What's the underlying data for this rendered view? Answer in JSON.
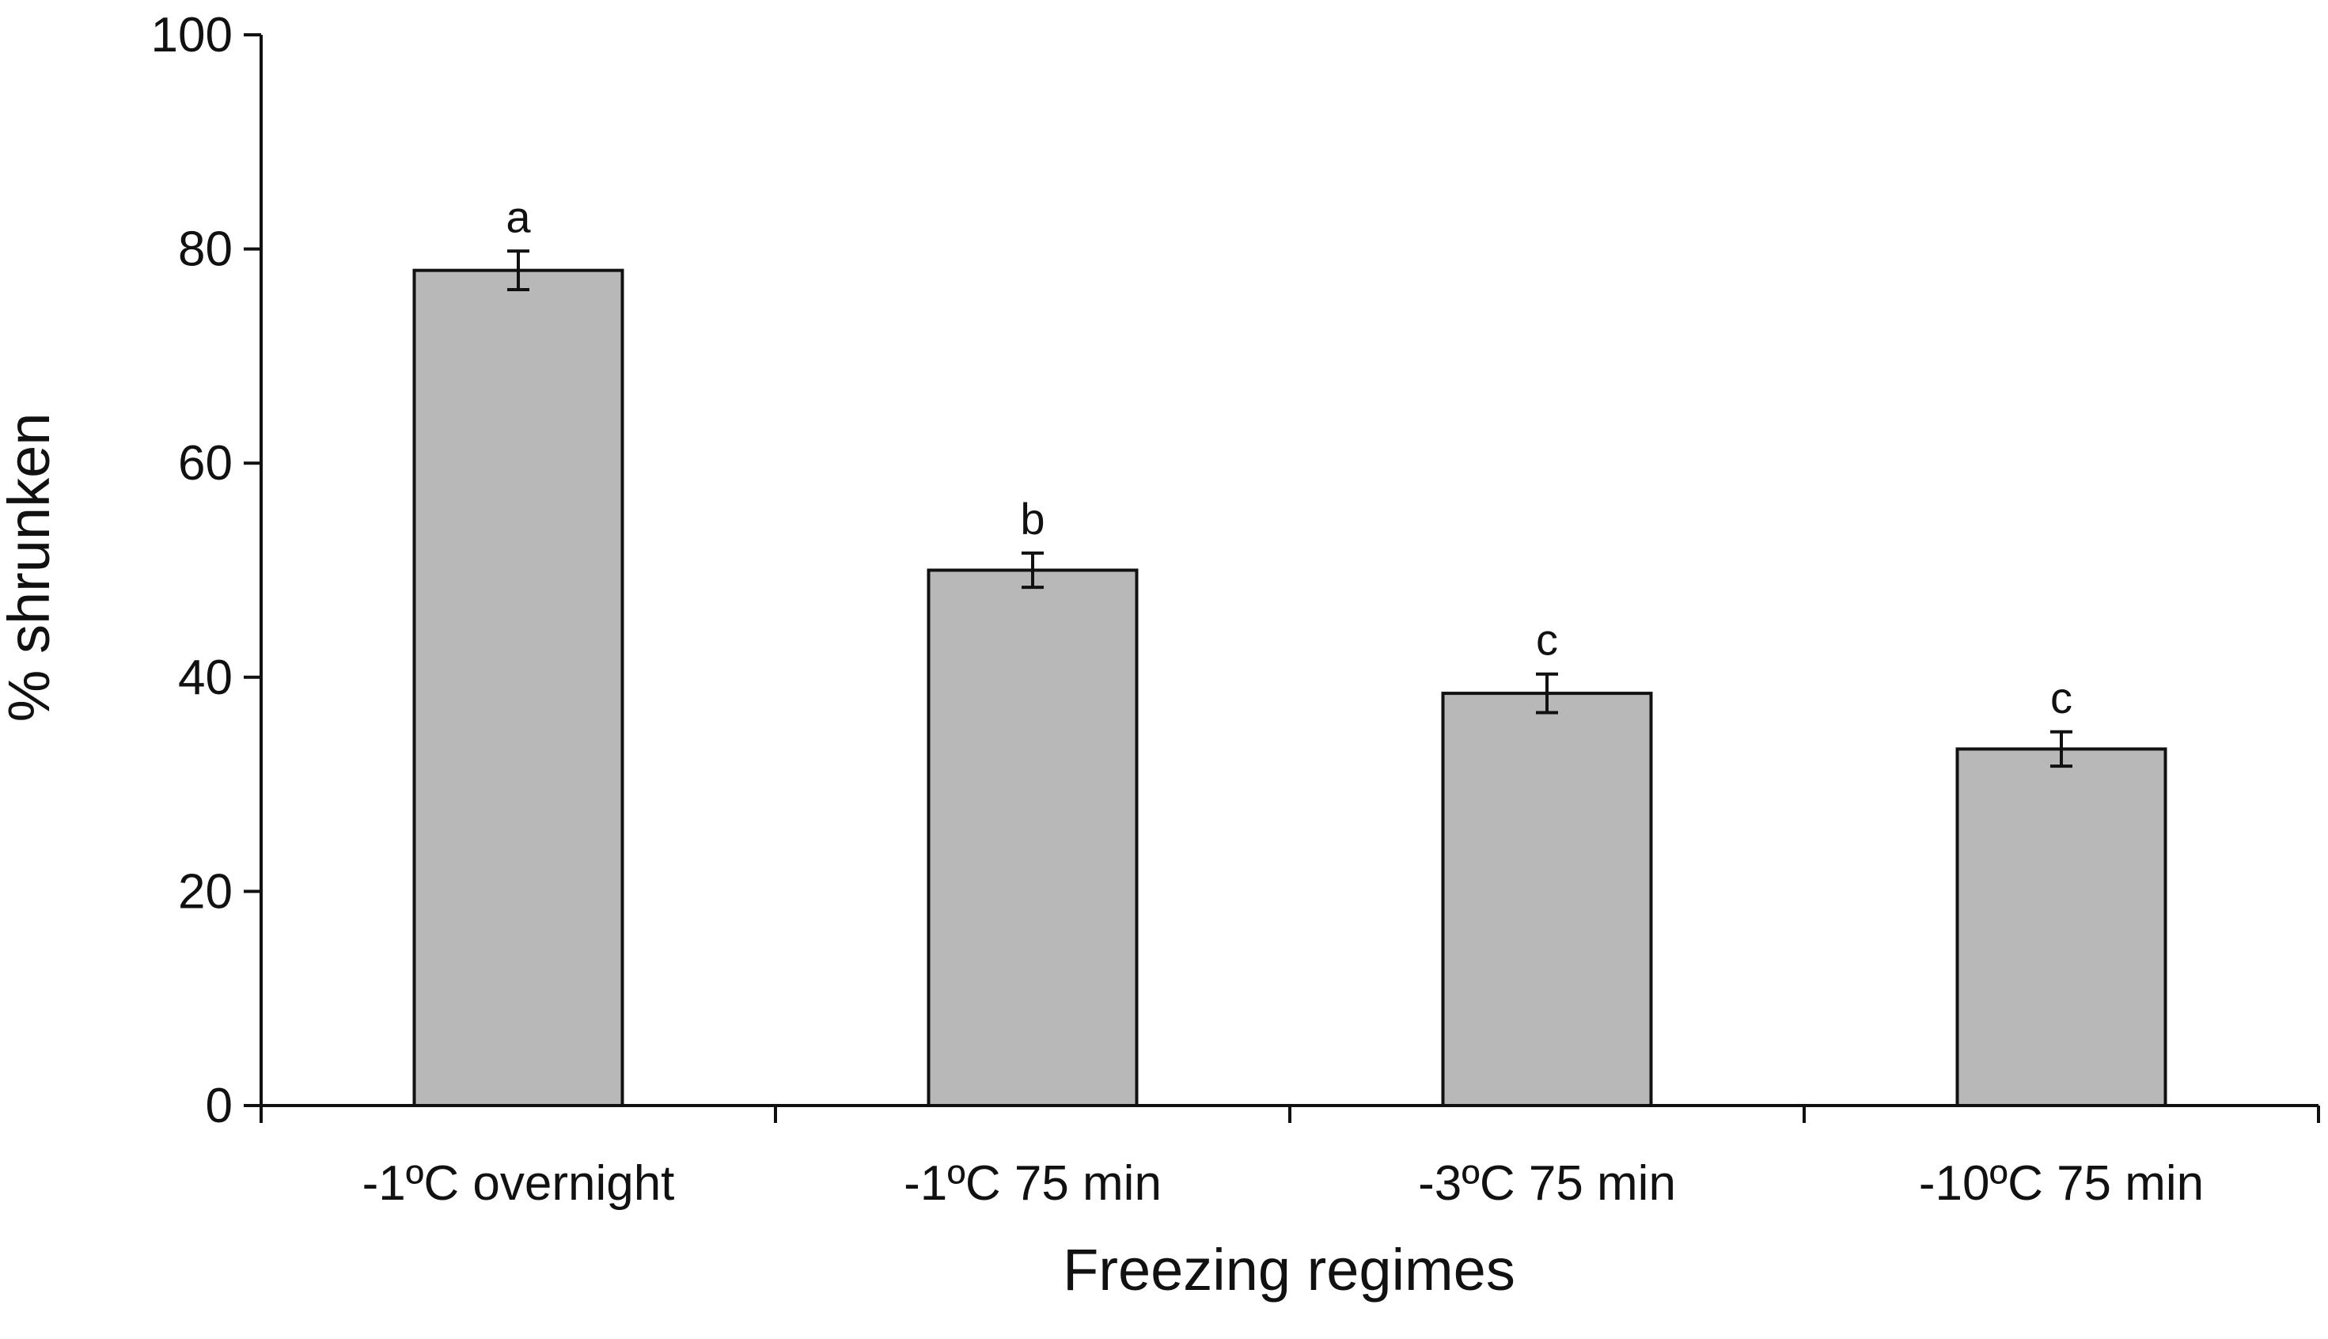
{
  "chart_data": {
    "type": "bar",
    "title": "",
    "xlabel": "Freezing regimes",
    "ylabel": "% shrunken",
    "ylim": [
      0,
      100
    ],
    "yticks": [
      0,
      20,
      40,
      60,
      80,
      100
    ],
    "yticks_labels": [
      "0",
      "20",
      "40",
      "60",
      "80",
      "100"
    ],
    "categories": [
      "-1ºC overnight",
      "-1ºC 75 min",
      "-3ºC 75 min",
      "-10ºC 75 min"
    ],
    "values": [
      78,
      50,
      38.5,
      33.3
    ],
    "error": [
      1.8,
      1.6,
      1.8,
      1.6
    ],
    "significance": [
      "a",
      "b",
      "c",
      "c"
    ],
    "grid": false,
    "legend": "none",
    "colors": {
      "bar_fill": "#b8b8b8",
      "bar_stroke": "#111111",
      "axis": "#111111"
    }
  }
}
